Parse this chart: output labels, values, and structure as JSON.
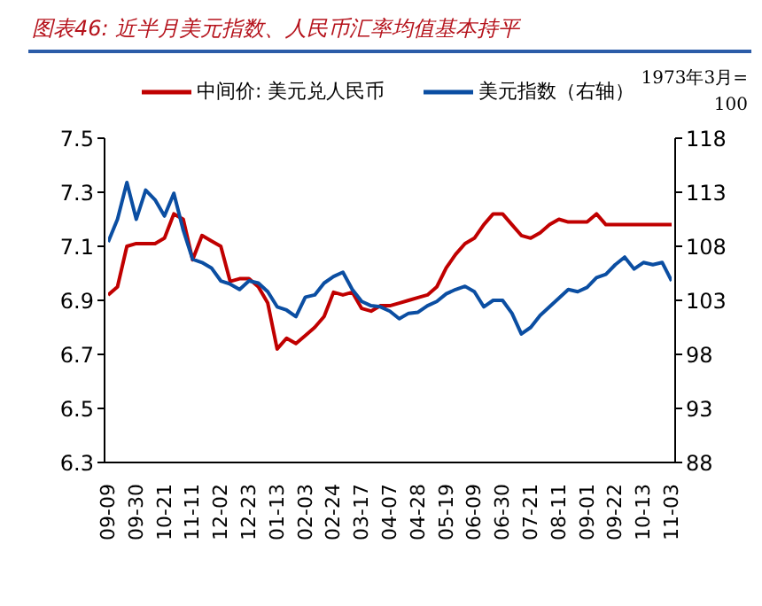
{
  "chart_data": {
    "type": "line",
    "title": "图表46: 近半月美元指数、人民币汇率均值基本持平",
    "y2label": "1973年3月=100",
    "categories": [
      "09-09",
      null,
      null,
      "09-30",
      null,
      null,
      "10-21",
      null,
      null,
      "11-11",
      null,
      null,
      "12-02",
      null,
      null,
      "12-23",
      null,
      null,
      "01-13",
      null,
      null,
      "02-03",
      null,
      null,
      "02-24",
      null,
      null,
      "03-17",
      null,
      null,
      "04-07",
      null,
      null,
      "04-28",
      null,
      null,
      "05-19",
      null,
      null,
      "06-09",
      null,
      null,
      "06-30",
      null,
      null,
      "07-21",
      null,
      null,
      "08-11",
      null,
      null,
      "09-01",
      null,
      null,
      "09-22",
      null,
      null,
      "10-13",
      null,
      null,
      "11-03"
    ],
    "series": [
      {
        "name": "中间价: 美元兑人民币",
        "color": "#c00000",
        "values": [
          6.92,
          6.95,
          7.1,
          7.11,
          7.11,
          7.11,
          7.13,
          7.22,
          7.2,
          7.05,
          7.14,
          7.12,
          7.1,
          6.97,
          6.98,
          6.98,
          6.95,
          6.89,
          6.72,
          6.76,
          6.74,
          6.77,
          6.8,
          6.84,
          6.93,
          6.92,
          6.93,
          6.87,
          6.86,
          6.88,
          6.88,
          6.89,
          6.9,
          6.91,
          6.92,
          6.95,
          7.02,
          7.07,
          7.11,
          7.13,
          7.18,
          7.22,
          7.22,
          7.18,
          7.14,
          7.13,
          7.15,
          7.18,
          7.2,
          7.19,
          7.19,
          7.19,
          7.22,
          7.18,
          7.18,
          7.18,
          7.18,
          7.18,
          7.18,
          7.18,
          7.18
        ]
      },
      {
        "name": "美元指数（右轴）",
        "color": "#0b4ea2",
        "axis": "y2",
        "values": [
          108.4,
          110.5,
          113.9,
          110.5,
          113.2,
          112.3,
          110.8,
          112.9,
          109.5,
          106.8,
          106.5,
          106.0,
          104.8,
          104.5,
          104.0,
          104.8,
          104.6,
          103.8,
          102.4,
          102.1,
          101.5,
          103.3,
          103.5,
          104.6,
          105.2,
          105.6,
          104.0,
          102.9,
          102.5,
          102.4,
          102.0,
          101.3,
          101.8,
          101.9,
          102.5,
          102.9,
          103.6,
          104.0,
          104.3,
          103.8,
          102.4,
          103.0,
          103.0,
          101.8,
          99.9,
          100.5,
          101.6,
          102.4,
          103.2,
          104.0,
          103.8,
          104.2,
          105.1,
          105.4,
          106.3,
          107.0,
          105.9,
          106.5,
          106.3,
          106.5,
          104.8
        ]
      }
    ],
    "ylim": [
      6.3,
      7.5
    ],
    "yticks": [
      6.3,
      6.5,
      6.7,
      6.9,
      7.1,
      7.3,
      7.5
    ],
    "y2lim": [
      88,
      118
    ],
    "y2ticks": [
      88,
      93,
      98,
      103,
      108,
      113,
      118
    ],
    "legend": "top",
    "grid": false,
    "marker": "none",
    "line_style": "solid"
  }
}
